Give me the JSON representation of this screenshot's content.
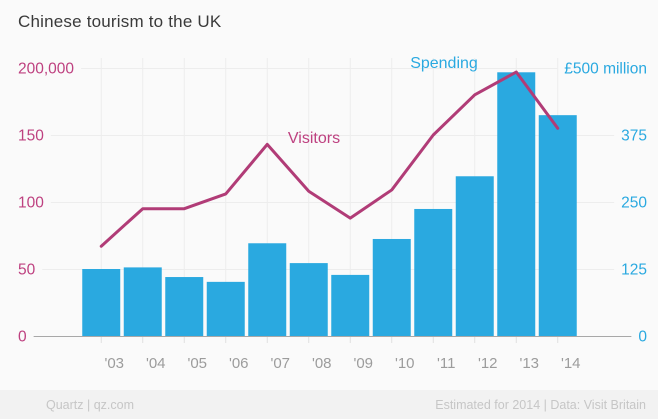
{
  "title": "Chinese tourism to the UK",
  "footer": {
    "left": "Quartz | qz.com",
    "right": "Estimated for 2014 | Data: Visit Britain"
  },
  "colors": {
    "spending": "#2AA9E0",
    "visitors_line": "#B13C77",
    "visitors_text": "#BE4180",
    "title": "#3A3A3A",
    "x_label": "#9C9C9C",
    "grid": "#EDEDED",
    "axis": "#A8A8A8",
    "tick": "#E0E0E0",
    "background": "#FAFAFA",
    "footer_bg": "#F2F2F2",
    "footer_text": "#C6C6C6"
  },
  "chart_data": {
    "type": "bar",
    "title": "Chinese tourism to the UK",
    "categories": [
      "'03",
      "'04",
      "'05",
      "'06",
      "'07",
      "'08",
      "'09",
      "'10",
      "'11",
      "'12",
      "'13",
      "'14"
    ],
    "series": [
      {
        "name": "Spending",
        "chart_type": "bar",
        "axis": "right",
        "unit": "£ million",
        "color": "#2AA9E0",
        "values": [
          125,
          128,
          110,
          101,
          173,
          136,
          114,
          181,
          237,
          298,
          492,
          412
        ]
      },
      {
        "name": "Visitors",
        "chart_type": "line",
        "axis": "left",
        "unit": "visitors",
        "color": "#B13C77",
        "values": [
          67000,
          95000,
          95000,
          106000,
          143000,
          108000,
          88000,
          109000,
          150000,
          180000,
          197000,
          155000
        ]
      }
    ],
    "left_axis": {
      "min": 0,
      "max": 200000,
      "tick_labels": [
        "200,000",
        "150",
        "100",
        "50",
        "0"
      ]
    },
    "right_axis": {
      "min": 0,
      "max": 500,
      "tick_labels": [
        "£500 million",
        "375",
        "250",
        "125",
        "0"
      ]
    },
    "grid": true,
    "legend_position": "inline-annotations",
    "annotations": [
      {
        "text": "Visitors",
        "series": "Visitors"
      },
      {
        "text": "Spending",
        "series": "Spending"
      }
    ]
  }
}
